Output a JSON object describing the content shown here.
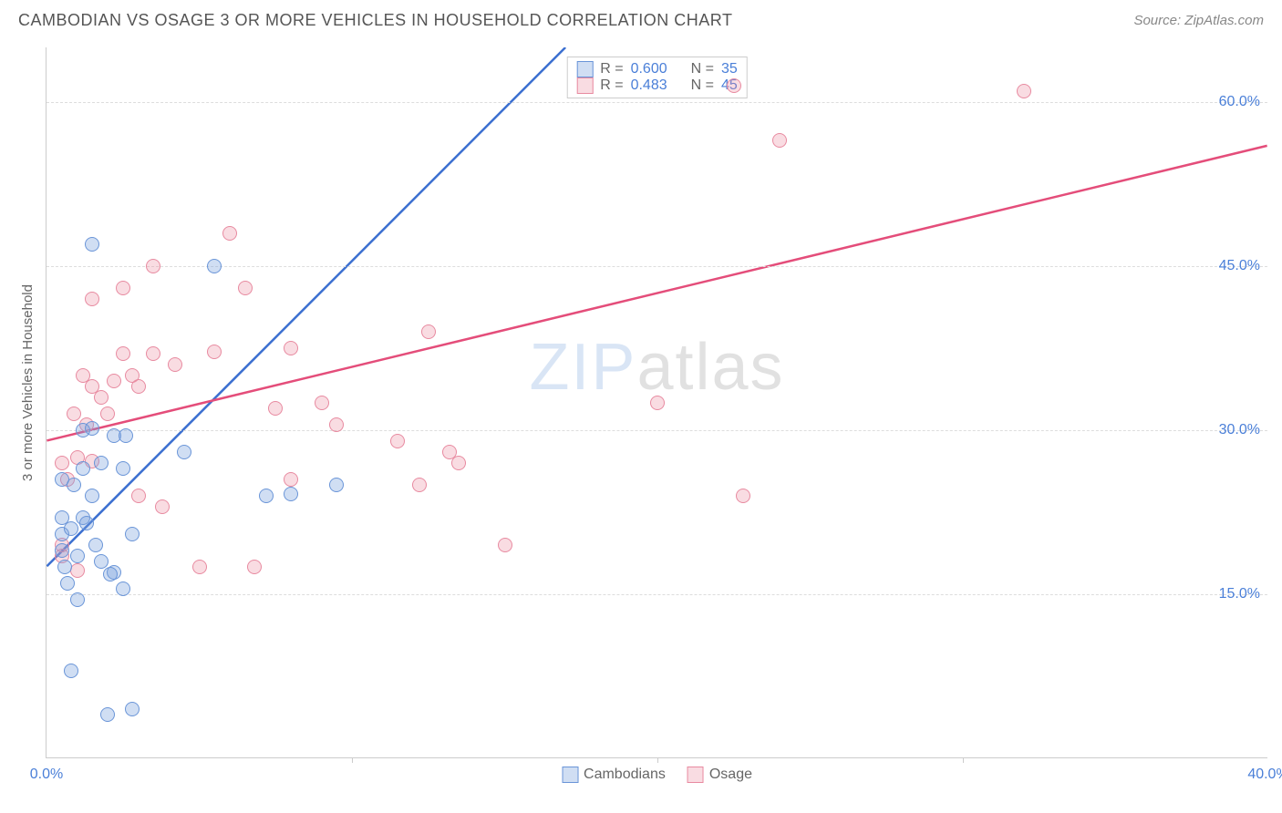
{
  "header": {
    "title": "CAMBODIAN VS OSAGE 3 OR MORE VEHICLES IN HOUSEHOLD CORRELATION CHART",
    "source": "Source: ZipAtlas.com"
  },
  "chart": {
    "type": "scatter",
    "ylabel": "3 or more Vehicles in Household",
    "xlim": [
      0,
      40
    ],
    "ylim": [
      0,
      65
    ],
    "xticks": [
      {
        "value": 0,
        "label": "0.0%"
      },
      {
        "value": 40,
        "label": "40.0%"
      }
    ],
    "xtick_marks": [
      10,
      20,
      30
    ],
    "yticks": [
      {
        "value": 15,
        "label": "15.0%"
      },
      {
        "value": 30,
        "label": "30.0%"
      },
      {
        "value": 45,
        "label": "45.0%"
      },
      {
        "value": 60,
        "label": "60.0%"
      }
    ],
    "background_color": "#ffffff",
    "grid_color": "#dddddd",
    "axis_color": "#cccccc",
    "marker_radius": 8,
    "series": {
      "blue": {
        "name": "Cambodians",
        "fill": "rgba(120,160,220,0.35)",
        "stroke": "#6a95d8",
        "line_color": "#3b6fd0",
        "R": "0.600",
        "N": "35",
        "trend": {
          "x1": 0,
          "y1": 17.5,
          "x2": 17,
          "y2": 65
        },
        "points": [
          [
            1.5,
            47
          ],
          [
            0.5,
            20.5
          ],
          [
            0.8,
            21
          ],
          [
            1.2,
            22
          ],
          [
            0.6,
            17.5
          ],
          [
            2.2,
            17
          ],
          [
            0.5,
            19
          ],
          [
            1.0,
            18.5
          ],
          [
            1.8,
            18
          ],
          [
            0.7,
            16
          ],
          [
            1.0,
            14.5
          ],
          [
            2.5,
            15.5
          ],
          [
            0.8,
            8
          ],
          [
            2.0,
            4
          ],
          [
            2.8,
            4.5
          ],
          [
            1.2,
            26.5
          ],
          [
            1.8,
            27
          ],
          [
            2.5,
            26.5
          ],
          [
            1.3,
            21.5
          ],
          [
            5.5,
            45
          ],
          [
            2.2,
            29.5
          ],
          [
            2.6,
            29.5
          ],
          [
            4.5,
            28
          ],
          [
            7.2,
            24
          ],
          [
            8.0,
            24.2
          ],
          [
            9.5,
            25
          ],
          [
            1.2,
            30
          ],
          [
            1.5,
            30.2
          ],
          [
            0.5,
            25.5
          ],
          [
            0.9,
            25
          ],
          [
            2.1,
            16.8
          ],
          [
            1.6,
            19.5
          ],
          [
            0.5,
            22
          ],
          [
            2.8,
            20.5
          ],
          [
            1.5,
            24
          ]
        ]
      },
      "pink": {
        "name": "Osage",
        "fill": "rgba(235,140,160,0.3)",
        "stroke": "#e88aa0",
        "line_color": "#e44d7a",
        "R": "0.483",
        "N": "45",
        "trend": {
          "x1": 0,
          "y1": 29,
          "x2": 40,
          "y2": 56
        },
        "points": [
          [
            0.5,
            27
          ],
          [
            1.0,
            27.5
          ],
          [
            0.7,
            25.5
          ],
          [
            1.5,
            27.2
          ],
          [
            0.5,
            19.5
          ],
          [
            0.5,
            18.5
          ],
          [
            1.0,
            17.2
          ],
          [
            3.0,
            24
          ],
          [
            3.8,
            23
          ],
          [
            5.0,
            17.5
          ],
          [
            6.8,
            17.5
          ],
          [
            6.0,
            48
          ],
          [
            3.5,
            45
          ],
          [
            2.5,
            43
          ],
          [
            6.5,
            43
          ],
          [
            2.2,
            34.5
          ],
          [
            2.5,
            37
          ],
          [
            3.5,
            37
          ],
          [
            2.8,
            35
          ],
          [
            4.2,
            36
          ],
          [
            3.0,
            34
          ],
          [
            1.2,
            35
          ],
          [
            1.5,
            34
          ],
          [
            1.8,
            33
          ],
          [
            5.5,
            37.2
          ],
          [
            8.0,
            37.5
          ],
          [
            7.5,
            32
          ],
          [
            9.0,
            32.5
          ],
          [
            9.5,
            30.5
          ],
          [
            11.5,
            29
          ],
          [
            13.2,
            28
          ],
          [
            8.0,
            25.5
          ],
          [
            12.2,
            25
          ],
          [
            13.5,
            27
          ],
          [
            15.0,
            19.5
          ],
          [
            20.0,
            32.5
          ],
          [
            22.8,
            24
          ],
          [
            22.5,
            61.5
          ],
          [
            24.0,
            56.5
          ],
          [
            32.0,
            61
          ],
          [
            12.5,
            39
          ],
          [
            1.5,
            42
          ],
          [
            0.9,
            31.5
          ],
          [
            1.3,
            30.5
          ],
          [
            2.0,
            31.5
          ]
        ]
      }
    },
    "legend_top_labels": {
      "R": "R =",
      "N": "N ="
    },
    "watermark": {
      "part1": "ZIP",
      "part2": "atlas"
    }
  }
}
